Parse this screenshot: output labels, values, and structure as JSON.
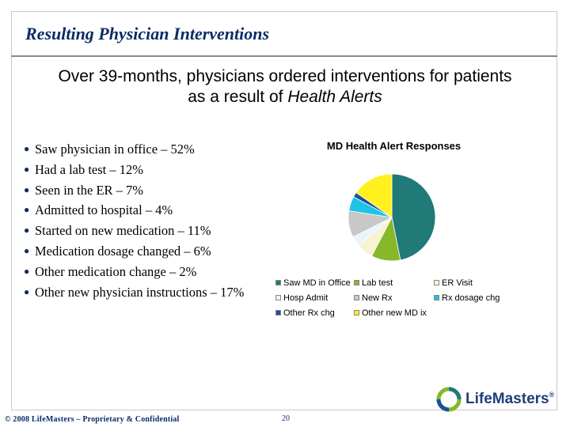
{
  "slide": {
    "title": "Resulting Physician Interventions",
    "subtitle_line1": "Over 39-months, physicians ordered interventions for patients",
    "subtitle_line2_prefix": "as a result of ",
    "subtitle_line2_em": "Health Alerts"
  },
  "bullets": [
    "Saw physician in office – 52%",
    "Had a lab test – 12%",
    "Seen in the ER – 7%",
    "Admitted to hospital – 4%",
    "Started on new medication – 11%",
    "Medication dosage changed – 6%",
    "Other medication change – 2%",
    "Other new physician instructions – 17%"
  ],
  "chart_data": {
    "type": "pie",
    "title": "MD Health Alert Responses",
    "legend_position": "bottom",
    "slices": [
      {
        "label": "Saw MD in Office",
        "value": 52,
        "color": "#1f7a78"
      },
      {
        "label": "Lab test",
        "value": 12,
        "color": "#86b82a"
      },
      {
        "label": "ER Visit",
        "value": 7,
        "color": "#f6f4d2"
      },
      {
        "label": "Hosp Admit",
        "value": 4,
        "color": "#e6f6fb"
      },
      {
        "label": "New Rx",
        "value": 11,
        "color": "#c8c8c8"
      },
      {
        "label": "Rx dosage chg",
        "value": 6,
        "color": "#1cc4e6"
      },
      {
        "label": "Other Rx chg",
        "value": 2,
        "color": "#1c4f9a"
      },
      {
        "label": "Other new MD ix",
        "value": 17,
        "color": "#fff01e"
      }
    ]
  },
  "footer": {
    "copyright": "© 2008 LifeMasters – Proprietary & Confidential",
    "page_number": "20"
  },
  "logo": {
    "text": "LifeMasters",
    "mark": "®"
  }
}
